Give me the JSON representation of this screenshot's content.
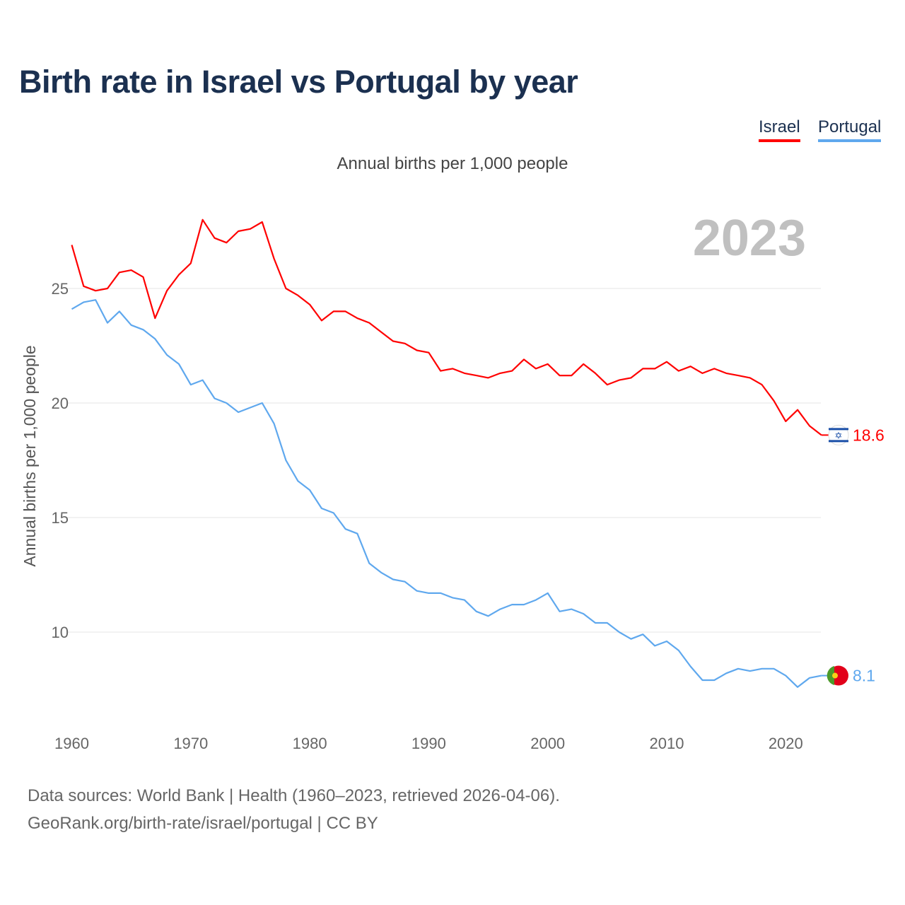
{
  "title": "Birth rate in Israel vs Portugal by year",
  "subtitle": "Annual births per 1,000 people",
  "legend": {
    "israel": "Israel",
    "portugal": "Portugal"
  },
  "source_line1": "Data sources: World Bank | Health (1960–2023, retrieved 2026-04-06).",
  "source_line2": "GeoRank.org/birth-rate/israel/portugal | CC BY",
  "chart_data": {
    "type": "line",
    "title": "Birth rate in Israel vs Portugal by year",
    "ylabel": "Annual births per 1,000 people",
    "xlabel": "",
    "year_label": "2023",
    "x_ticks": [
      "1960",
      "1970",
      "1980",
      "1990",
      "2000",
      "2010",
      "2020"
    ],
    "y_ticks": [
      "10",
      "15",
      "20",
      "25"
    ],
    "xlim": [
      1960,
      2023
    ],
    "grid": true,
    "legend_position": "top-right",
    "x": [
      1960,
      1961,
      1962,
      1963,
      1964,
      1965,
      1966,
      1967,
      1968,
      1969,
      1970,
      1971,
      1972,
      1973,
      1974,
      1975,
      1976,
      1977,
      1978,
      1979,
      1980,
      1981,
      1982,
      1983,
      1984,
      1985,
      1986,
      1987,
      1988,
      1989,
      1990,
      1991,
      1992,
      1993,
      1994,
      1995,
      1996,
      1997,
      1998,
      1999,
      2000,
      2001,
      2002,
      2003,
      2004,
      2005,
      2006,
      2007,
      2008,
      2009,
      2010,
      2011,
      2012,
      2013,
      2014,
      2015,
      2016,
      2017,
      2018,
      2019,
      2020,
      2021,
      2022,
      2023
    ],
    "series": [
      {
        "name": "Israel",
        "color": "#ff0000",
        "end_label": "18.6",
        "values": [
          26.9,
          25.1,
          24.9,
          25.0,
          25.7,
          25.8,
          25.5,
          23.7,
          24.9,
          25.6,
          26.1,
          28.0,
          27.2,
          27.0,
          27.5,
          27.6,
          27.9,
          26.3,
          25.0,
          24.7,
          24.3,
          23.6,
          24.0,
          24.0,
          23.7,
          23.5,
          23.1,
          22.7,
          22.6,
          22.3,
          22.2,
          21.4,
          21.5,
          21.3,
          21.2,
          21.1,
          21.3,
          21.4,
          21.9,
          21.5,
          21.7,
          21.2,
          21.2,
          21.7,
          21.3,
          20.8,
          21.0,
          21.1,
          21.5,
          21.5,
          21.8,
          21.4,
          21.6,
          21.3,
          21.5,
          21.3,
          21.2,
          21.1,
          20.8,
          20.1,
          19.2,
          19.7,
          19.0,
          18.6
        ]
      },
      {
        "name": "Portugal",
        "color": "#5fa8ee",
        "end_label": "8.1",
        "values": [
          24.1,
          24.4,
          24.5,
          23.5,
          24.0,
          23.4,
          23.2,
          22.8,
          22.1,
          21.7,
          20.8,
          21.0,
          20.2,
          20.0,
          19.6,
          19.8,
          20.0,
          19.1,
          17.5,
          16.6,
          16.2,
          15.4,
          15.2,
          14.5,
          14.3,
          13.0,
          12.6,
          12.3,
          12.2,
          11.8,
          11.7,
          11.7,
          11.5,
          11.4,
          10.9,
          10.7,
          11.0,
          11.2,
          11.2,
          11.4,
          11.7,
          10.9,
          11.0,
          10.8,
          10.4,
          10.4,
          10.0,
          9.7,
          9.9,
          9.4,
          9.6,
          9.2,
          8.5,
          7.9,
          7.9,
          8.2,
          8.4,
          8.3,
          8.4,
          8.4,
          8.1,
          7.6,
          8.0,
          8.1
        ]
      }
    ]
  }
}
